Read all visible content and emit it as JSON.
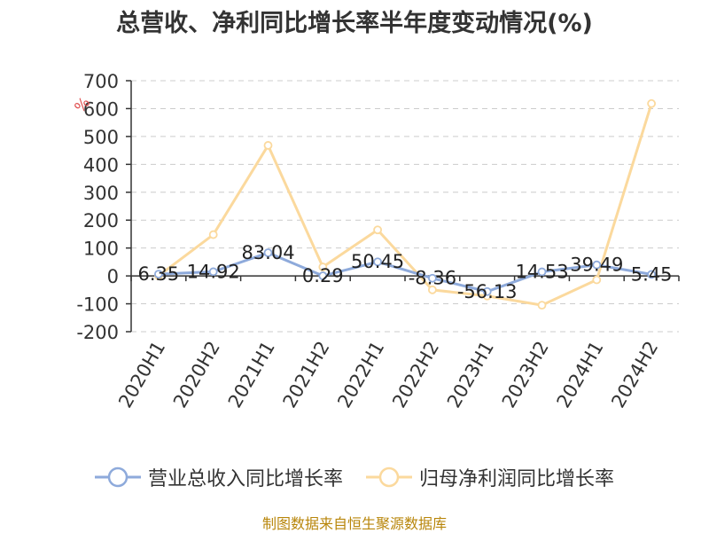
{
  "chart_data": {
    "type": "line",
    "title": "总营收、净利同比增长率半年度变动情况(%)",
    "ylabel": "%",
    "categories": [
      "2020H1",
      "2020H2",
      "2021H1",
      "2021H2",
      "2022H1",
      "2022H2",
      "2023H1",
      "2023H2",
      "2024H1",
      "2024H2"
    ],
    "yticks": [
      700,
      600,
      500,
      400,
      300,
      200,
      100,
      0,
      -100,
      -200
    ],
    "ylim": [
      -200,
      700
    ],
    "grid": true,
    "legend_position": "bottom",
    "series": [
      {
        "name": "营业总收入同比增长率",
        "color": "#8eaadb",
        "values": [
          6.35,
          14.92,
          83.04,
          0.29,
          50.45,
          -8.36,
          -56.13,
          14.53,
          39.49,
          5.45
        ],
        "labels": [
          "6.35",
          "14.92",
          "83.04",
          "0.29",
          "50.45",
          "-8.36",
          "-56.13",
          "14.53",
          "39.49",
          "5.45"
        ]
      },
      {
        "name": "归母净利润同比增长率",
        "color": "#fbd99d",
        "values": [
          0,
          148,
          468,
          32,
          165,
          -50,
          -72,
          -105,
          -14,
          618
        ]
      }
    ]
  },
  "source": "制图数据来自恒生聚源数据库"
}
